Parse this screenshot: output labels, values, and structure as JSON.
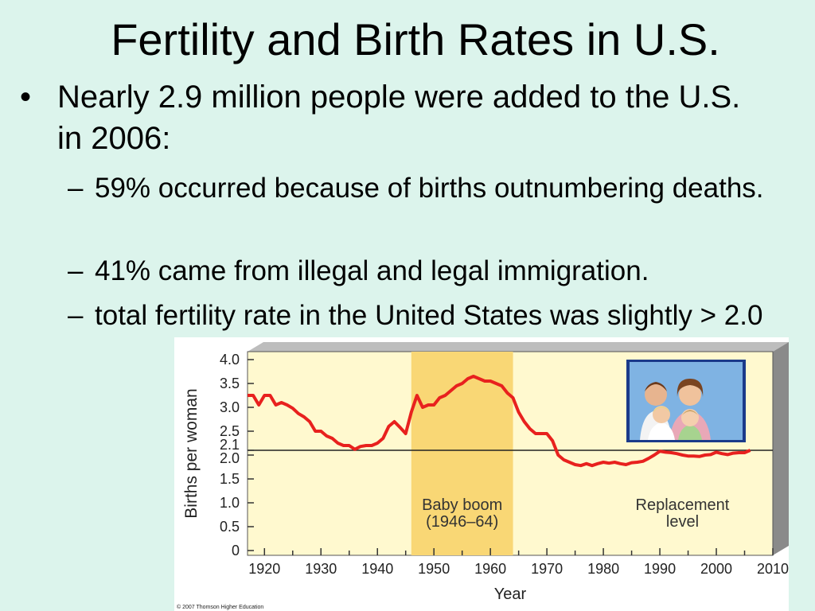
{
  "slide": {
    "title": "Fertility and Birth Rates in U.S.",
    "bullet": "Nearly 2.9 million people were added to the U.S. in 2006:",
    "sub_bullets": [
      "59% occurred because of births outnumbering deaths.",
      "41% came from illegal and legal immigration.",
      "total fertility rate in the United States was slightly > 2.0"
    ],
    "bullet_marker": "•",
    "sub_marker": "–"
  },
  "chart_data": {
    "type": "line",
    "title": "",
    "xlabel": "Year",
    "ylabel": "Births per woman",
    "xlim": [
      1917,
      2010
    ],
    "ylim": [
      0,
      4.0
    ],
    "x_ticks": [
      "1920",
      "1930",
      "1940",
      "1950",
      "1960",
      "1970",
      "1980",
      "1990",
      "2000",
      "2010"
    ],
    "y_ticks": [
      "0",
      "0.5",
      "1.0",
      "1.5",
      "2.0",
      "2.1",
      "2.5",
      "3.0",
      "3.5",
      "4.0"
    ],
    "series": [
      {
        "values": [
          [
            1917,
            3.25
          ],
          [
            1918,
            3.25
          ],
          [
            1919,
            3.05
          ],
          [
            1920,
            3.25
          ],
          [
            1921,
            3.25
          ],
          [
            1922,
            3.05
          ],
          [
            1923,
            3.1
          ],
          [
            1924,
            3.05
          ],
          [
            1925,
            2.98
          ],
          [
            1926,
            2.87
          ],
          [
            1927,
            2.8
          ],
          [
            1928,
            2.7
          ],
          [
            1929,
            2.5
          ],
          [
            1930,
            2.5
          ],
          [
            1931,
            2.4
          ],
          [
            1932,
            2.35
          ],
          [
            1933,
            2.25
          ],
          [
            1934,
            2.2
          ],
          [
            1935,
            2.2
          ],
          [
            1936,
            2.12
          ],
          [
            1937,
            2.18
          ],
          [
            1938,
            2.2
          ],
          [
            1939,
            2.2
          ],
          [
            1940,
            2.25
          ],
          [
            1941,
            2.35
          ],
          [
            1942,
            2.6
          ],
          [
            1943,
            2.7
          ],
          [
            1944,
            2.58
          ],
          [
            1945,
            2.45
          ],
          [
            1946,
            2.9
          ],
          [
            1947,
            3.25
          ],
          [
            1948,
            3.0
          ],
          [
            1949,
            3.05
          ],
          [
            1950,
            3.05
          ],
          [
            1951,
            3.2
          ],
          [
            1952,
            3.25
          ],
          [
            1953,
            3.35
          ],
          [
            1954,
            3.45
          ],
          [
            1955,
            3.5
          ],
          [
            1956,
            3.6
          ],
          [
            1957,
            3.65
          ],
          [
            1958,
            3.6
          ],
          [
            1959,
            3.55
          ],
          [
            1960,
            3.55
          ],
          [
            1961,
            3.5
          ],
          [
            1962,
            3.45
          ],
          [
            1963,
            3.3
          ],
          [
            1964,
            3.2
          ],
          [
            1965,
            2.9
          ],
          [
            1966,
            2.7
          ],
          [
            1967,
            2.55
          ],
          [
            1968,
            2.45
          ],
          [
            1969,
            2.45
          ],
          [
            1970,
            2.45
          ],
          [
            1971,
            2.3
          ],
          [
            1972,
            2.0
          ],
          [
            1973,
            1.9
          ],
          [
            1974,
            1.85
          ],
          [
            1975,
            1.8
          ],
          [
            1976,
            1.78
          ],
          [
            1977,
            1.82
          ],
          [
            1978,
            1.78
          ],
          [
            1979,
            1.82
          ],
          [
            1980,
            1.85
          ],
          [
            1981,
            1.83
          ],
          [
            1982,
            1.85
          ],
          [
            1983,
            1.82
          ],
          [
            1984,
            1.8
          ],
          [
            1985,
            1.84
          ],
          [
            1986,
            1.85
          ],
          [
            1987,
            1.87
          ],
          [
            1988,
            1.93
          ],
          [
            1989,
            2.0
          ],
          [
            1990,
            2.08
          ],
          [
            1991,
            2.06
          ],
          [
            1992,
            2.05
          ],
          [
            1993,
            2.03
          ],
          [
            1994,
            2.0
          ],
          [
            1995,
            1.98
          ],
          [
            1996,
            1.98
          ],
          [
            1997,
            1.97
          ],
          [
            1998,
            2.0
          ],
          [
            1999,
            2.01
          ],
          [
            2000,
            2.06
          ],
          [
            2001,
            2.03
          ],
          [
            2002,
            2.01
          ],
          [
            2003,
            2.04
          ],
          [
            2004,
            2.05
          ],
          [
            2005,
            2.05
          ],
          [
            2006,
            2.1
          ]
        ]
      }
    ],
    "replacement_level": 2.1,
    "shaded_region": {
      "x": [
        1946,
        1964
      ],
      "label_line1": "Baby boom",
      "label_line2": "(1946–64)"
    },
    "annotation": {
      "line1": "Replacement",
      "line2": "level"
    },
    "credit": "© 2007 Thomson Higher Education",
    "grid": false,
    "legend": "none",
    "colors": {
      "plot_bg": "#fff9cf",
      "shade": "#f9d775",
      "line": "#e8211e",
      "replacement_line": "#222222",
      "frame_side": "#8a8a8a",
      "axis_text": "#222222"
    }
  }
}
